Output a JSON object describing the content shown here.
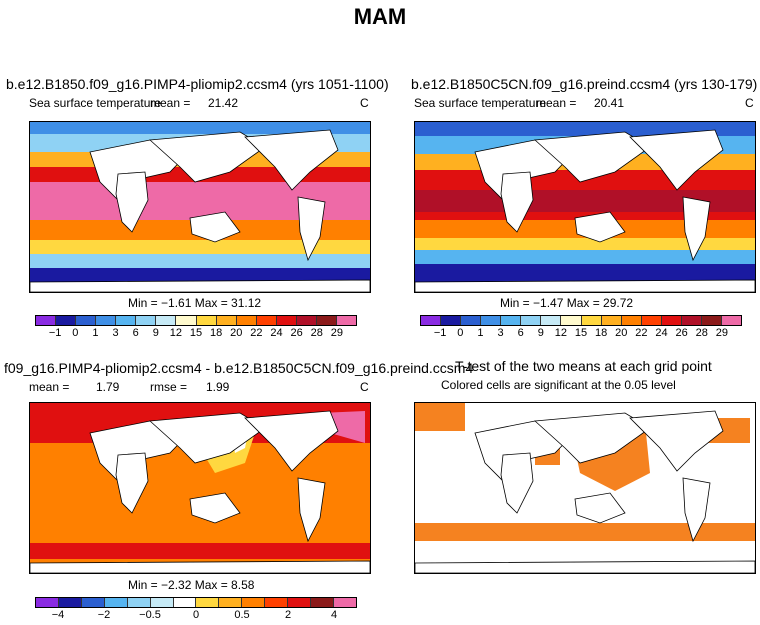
{
  "figure": {
    "title": "MAM"
  },
  "panels": {
    "top_left": {
      "title": "b.e12.B1850.f09_g16.PIMP4-pliomip2.ccsm4 (yrs 1051-1100)",
      "variable": "Sea surface temperature",
      "stat_label": "mean =",
      "stat_value": "21.42",
      "units": "C",
      "minmax": "Min =  −1.61  Max =   31.12"
    },
    "top_right": {
      "title": "b.e12.B1850C5CN.f09_g16.preind.ccsm4 (yrs 130-179)",
      "variable": "Sea surface temperature",
      "stat_label": "mean =",
      "stat_value": "20.41",
      "units": "C",
      "minmax": "Min =  −1.47  Max =   29.72"
    },
    "bottom_left": {
      "title": "f09_g16.PIMP4-pliomip2.ccsm4 - b.e12.B1850C5CN.f09_g16.preind.ccsm4",
      "mean_label": "mean =",
      "mean_value": "1.79",
      "rmse_label": "rmse =",
      "rmse_value": "1.99",
      "units": "C",
      "minmax": "Min =  −2.32  Max =    8.58"
    },
    "bottom_right": {
      "title": "T-test of the two means at each grid point",
      "subtitle": "Colored cells are significant at the 0.05 level"
    }
  },
  "colorbars": {
    "sst": {
      "colors": [
        "#8a2be2",
        "#1a1aa0",
        "#2b5fd0",
        "#3f8fe6",
        "#56b4f0",
        "#8fd2f4",
        "#c6eaf6",
        "#fffacd",
        "#ffd840",
        "#ffb020",
        "#ff8000",
        "#ff4000",
        "#e01010",
        "#b01028",
        "#8b1a1a",
        "#ee6aa7"
      ],
      "labels": [
        "−1",
        "0",
        "1",
        "3",
        "6",
        "9",
        "12",
        "15",
        "18",
        "20",
        "22",
        "24",
        "26",
        "28",
        "29"
      ]
    },
    "diff": {
      "colors": [
        "#8a2be2",
        "#1a1aa0",
        "#2b5fd0",
        "#56b4f0",
        "#8fd2f4",
        "#c6eaf6",
        "#ffffff",
        "#ffd840",
        "#ffb020",
        "#ff8000",
        "#ff4000",
        "#e01010",
        "#8b1a1a",
        "#ee6aa7"
      ],
      "labels": [
        "−4",
        "−2",
        "−0.5",
        "0",
        "0.5",
        "2",
        "4"
      ]
    }
  },
  "legend_colors": {
    "ttest_fill": "#f58220",
    "land": "#ffffff",
    "coast": "#000000"
  }
}
